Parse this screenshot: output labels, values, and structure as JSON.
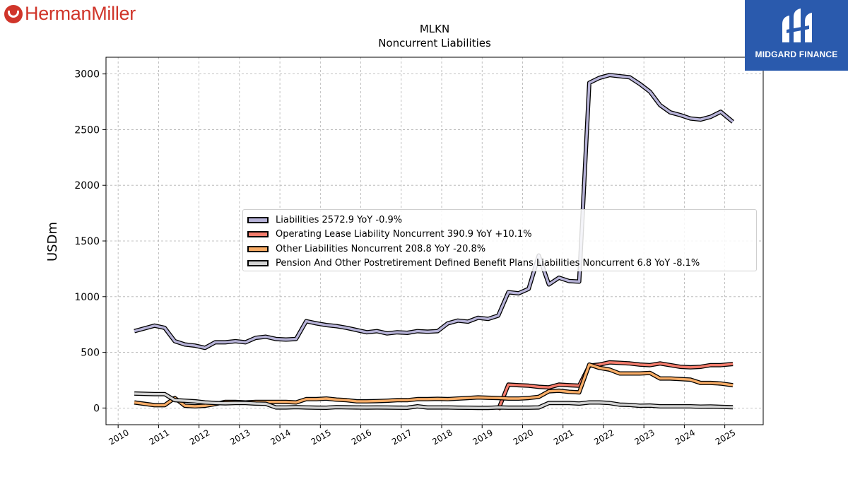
{
  "branding": {
    "left_logo_text": "HermanMiller",
    "left_logo_color": "#d0352a",
    "right_logo_text": "MIDGARD FINANCE",
    "right_logo_bg": "#2a5aad"
  },
  "chart_data": {
    "type": "line",
    "title": "MLKN",
    "subtitle": "Noncurrent  Liabilities",
    "xlabel": "",
    "ylabel": "USDm",
    "xlim": [
      2009.7,
      2025.95
    ],
    "ylim": [
      -150,
      3150
    ],
    "x_ticks": [
      2010,
      2011,
      2012,
      2013,
      2014,
      2015,
      2016,
      2017,
      2018,
      2019,
      2020,
      2021,
      2022,
      2023,
      2024,
      2025
    ],
    "y_ticks": [
      0,
      500,
      1000,
      1500,
      2000,
      2500,
      3000
    ],
    "grid": true,
    "legend_position": "center",
    "series": [
      {
        "name": "Liabilities",
        "legend_label": "Liabilities  2572.9 YoY -0.9%",
        "color": "#b7b3d8",
        "points": [
          [
            2010.4,
            690
          ],
          [
            2010.9,
            740
          ],
          [
            2011.15,
            720
          ],
          [
            2011.4,
            600
          ],
          [
            2011.65,
            570
          ],
          [
            2011.9,
            560
          ],
          [
            2012.15,
            540
          ],
          [
            2012.4,
            590
          ],
          [
            2012.65,
            590
          ],
          [
            2012.9,
            600
          ],
          [
            2013.15,
            590
          ],
          [
            2013.4,
            630
          ],
          [
            2013.65,
            640
          ],
          [
            2013.9,
            620
          ],
          [
            2014.15,
            615
          ],
          [
            2014.4,
            620
          ],
          [
            2014.65,
            780
          ],
          [
            2014.9,
            760
          ],
          [
            2015.15,
            745
          ],
          [
            2015.4,
            735
          ],
          [
            2015.65,
            720
          ],
          [
            2015.9,
            700
          ],
          [
            2016.15,
            680
          ],
          [
            2016.4,
            690
          ],
          [
            2016.65,
            670
          ],
          [
            2016.9,
            680
          ],
          [
            2017.15,
            675
          ],
          [
            2017.4,
            690
          ],
          [
            2017.65,
            685
          ],
          [
            2017.9,
            690
          ],
          [
            2018.15,
            760
          ],
          [
            2018.4,
            785
          ],
          [
            2018.65,
            775
          ],
          [
            2018.9,
            810
          ],
          [
            2019.15,
            800
          ],
          [
            2019.4,
            830
          ],
          [
            2019.65,
            1040
          ],
          [
            2019.9,
            1030
          ],
          [
            2020.15,
            1070
          ],
          [
            2020.4,
            1370
          ],
          [
            2020.65,
            1110
          ],
          [
            2020.9,
            1170
          ],
          [
            2021.15,
            1140
          ],
          [
            2021.4,
            1135
          ],
          [
            2021.65,
            2920
          ],
          [
            2021.9,
            2965
          ],
          [
            2022.15,
            2990
          ],
          [
            2022.4,
            2980
          ],
          [
            2022.65,
            2970
          ],
          [
            2022.9,
            2910
          ],
          [
            2023.15,
            2840
          ],
          [
            2023.4,
            2720
          ],
          [
            2023.65,
            2655
          ],
          [
            2023.9,
            2630
          ],
          [
            2024.15,
            2600
          ],
          [
            2024.4,
            2590
          ],
          [
            2024.65,
            2615
          ],
          [
            2024.9,
            2660
          ],
          [
            2025.2,
            2570
          ]
        ]
      },
      {
        "name": "Operating Lease Liability Noncurrent",
        "legend_label": "Operating Lease Liability Noncurrent  390.9 YoY +10.1%",
        "color": "#f47c6c",
        "points": [
          [
            2019.4,
            -15
          ],
          [
            2019.65,
            210
          ],
          [
            2019.9,
            205
          ],
          [
            2020.15,
            200
          ],
          [
            2020.4,
            190
          ],
          [
            2020.65,
            185
          ],
          [
            2020.9,
            210
          ],
          [
            2021.15,
            205
          ],
          [
            2021.4,
            200
          ],
          [
            2021.65,
            380
          ],
          [
            2021.9,
            390
          ],
          [
            2022.15,
            410
          ],
          [
            2022.4,
            405
          ],
          [
            2022.65,
            400
          ],
          [
            2022.9,
            390
          ],
          [
            2023.15,
            385
          ],
          [
            2023.4,
            400
          ],
          [
            2023.65,
            385
          ],
          [
            2023.9,
            370
          ],
          [
            2024.15,
            365
          ],
          [
            2024.4,
            370
          ],
          [
            2024.65,
            385
          ],
          [
            2024.9,
            385
          ],
          [
            2025.2,
            395
          ]
        ]
      },
      {
        "name": "Other Liabilities Noncurrent",
        "legend_label": "Other Liabilities Noncurrent  208.8 YoY -20.8%",
        "color": "#f8ac66",
        "points": [
          [
            2010.4,
            50
          ],
          [
            2010.9,
            25
          ],
          [
            2011.15,
            25
          ],
          [
            2011.4,
            90
          ],
          [
            2011.65,
            20
          ],
          [
            2011.9,
            15
          ],
          [
            2012.15,
            20
          ],
          [
            2012.4,
            35
          ],
          [
            2012.65,
            55
          ],
          [
            2012.9,
            55
          ],
          [
            2013.15,
            50
          ],
          [
            2013.4,
            55
          ],
          [
            2013.65,
            55
          ],
          [
            2013.9,
            55
          ],
          [
            2014.15,
            55
          ],
          [
            2014.4,
            50
          ],
          [
            2014.65,
            80
          ],
          [
            2014.9,
            80
          ],
          [
            2015.15,
            85
          ],
          [
            2015.4,
            75
          ],
          [
            2015.65,
            70
          ],
          [
            2015.9,
            60
          ],
          [
            2016.15,
            60
          ],
          [
            2016.4,
            62
          ],
          [
            2016.65,
            65
          ],
          [
            2016.9,
            70
          ],
          [
            2017.15,
            70
          ],
          [
            2017.4,
            80
          ],
          [
            2017.65,
            80
          ],
          [
            2017.9,
            82
          ],
          [
            2018.15,
            80
          ],
          [
            2018.4,
            85
          ],
          [
            2018.65,
            90
          ],
          [
            2018.9,
            95
          ],
          [
            2019.15,
            92
          ],
          [
            2019.4,
            90
          ],
          [
            2019.65,
            85
          ],
          [
            2019.9,
            85
          ],
          [
            2020.15,
            90
          ],
          [
            2020.4,
            100
          ],
          [
            2020.65,
            150
          ],
          [
            2020.9,
            155
          ],
          [
            2021.15,
            145
          ],
          [
            2021.4,
            140
          ],
          [
            2021.65,
            390
          ],
          [
            2021.9,
            360
          ],
          [
            2022.15,
            345
          ],
          [
            2022.4,
            310
          ],
          [
            2022.65,
            310
          ],
          [
            2022.9,
            310
          ],
          [
            2023.15,
            315
          ],
          [
            2023.4,
            265
          ],
          [
            2023.65,
            265
          ],
          [
            2023.9,
            260
          ],
          [
            2024.15,
            255
          ],
          [
            2024.4,
            225
          ],
          [
            2024.65,
            225
          ],
          [
            2024.9,
            220
          ],
          [
            2025.2,
            205
          ]
        ]
      },
      {
        "name": "Pension And Other Postretirement Defined Benefit Plans Liabilities Noncurrent",
        "legend_label": "Pension And Other Postretirement Defined Benefit Plans Liabilities Noncurrent  6.8 YoY -8.1%",
        "color": "#d3d3d3",
        "points": [
          [
            2010.4,
            130
          ],
          [
            2010.9,
            125
          ],
          [
            2011.15,
            125
          ],
          [
            2011.4,
            70
          ],
          [
            2011.65,
            65
          ],
          [
            2011.9,
            60
          ],
          [
            2012.15,
            50
          ],
          [
            2012.4,
            45
          ],
          [
            2012.65,
            42
          ],
          [
            2012.9,
            45
          ],
          [
            2013.15,
            45
          ],
          [
            2013.4,
            40
          ],
          [
            2013.65,
            38
          ],
          [
            2013.9,
            5
          ],
          [
            2014.15,
            5
          ],
          [
            2014.4,
            8
          ],
          [
            2014.65,
            5
          ],
          [
            2014.9,
            3
          ],
          [
            2015.15,
            2
          ],
          [
            2015.4,
            8
          ],
          [
            2015.65,
            6
          ],
          [
            2015.9,
            5
          ],
          [
            2016.15,
            4
          ],
          [
            2016.4,
            5
          ],
          [
            2016.65,
            4
          ],
          [
            2016.9,
            3
          ],
          [
            2017.15,
            2
          ],
          [
            2017.4,
            15
          ],
          [
            2017.65,
            5
          ],
          [
            2017.9,
            5
          ],
          [
            2018.15,
            5
          ],
          [
            2018.4,
            3
          ],
          [
            2018.65,
            2
          ],
          [
            2018.9,
            1
          ],
          [
            2019.15,
            1
          ],
          [
            2019.4,
            5
          ],
          [
            2019.65,
            3
          ],
          [
            2019.9,
            3
          ],
          [
            2020.15,
            3
          ],
          [
            2020.4,
            5
          ],
          [
            2020.65,
            45
          ],
          [
            2020.9,
            45
          ],
          [
            2021.15,
            45
          ],
          [
            2021.4,
            40
          ],
          [
            2021.65,
            50
          ],
          [
            2021.9,
            50
          ],
          [
            2022.15,
            45
          ],
          [
            2022.4,
            30
          ],
          [
            2022.65,
            28
          ],
          [
            2022.9,
            20
          ],
          [
            2023.15,
            22
          ],
          [
            2023.4,
            15
          ],
          [
            2023.65,
            15
          ],
          [
            2023.9,
            15
          ],
          [
            2024.15,
            15
          ],
          [
            2024.4,
            12
          ],
          [
            2024.65,
            14
          ],
          [
            2024.9,
            10
          ],
          [
            2025.2,
            7
          ]
        ]
      }
    ]
  }
}
